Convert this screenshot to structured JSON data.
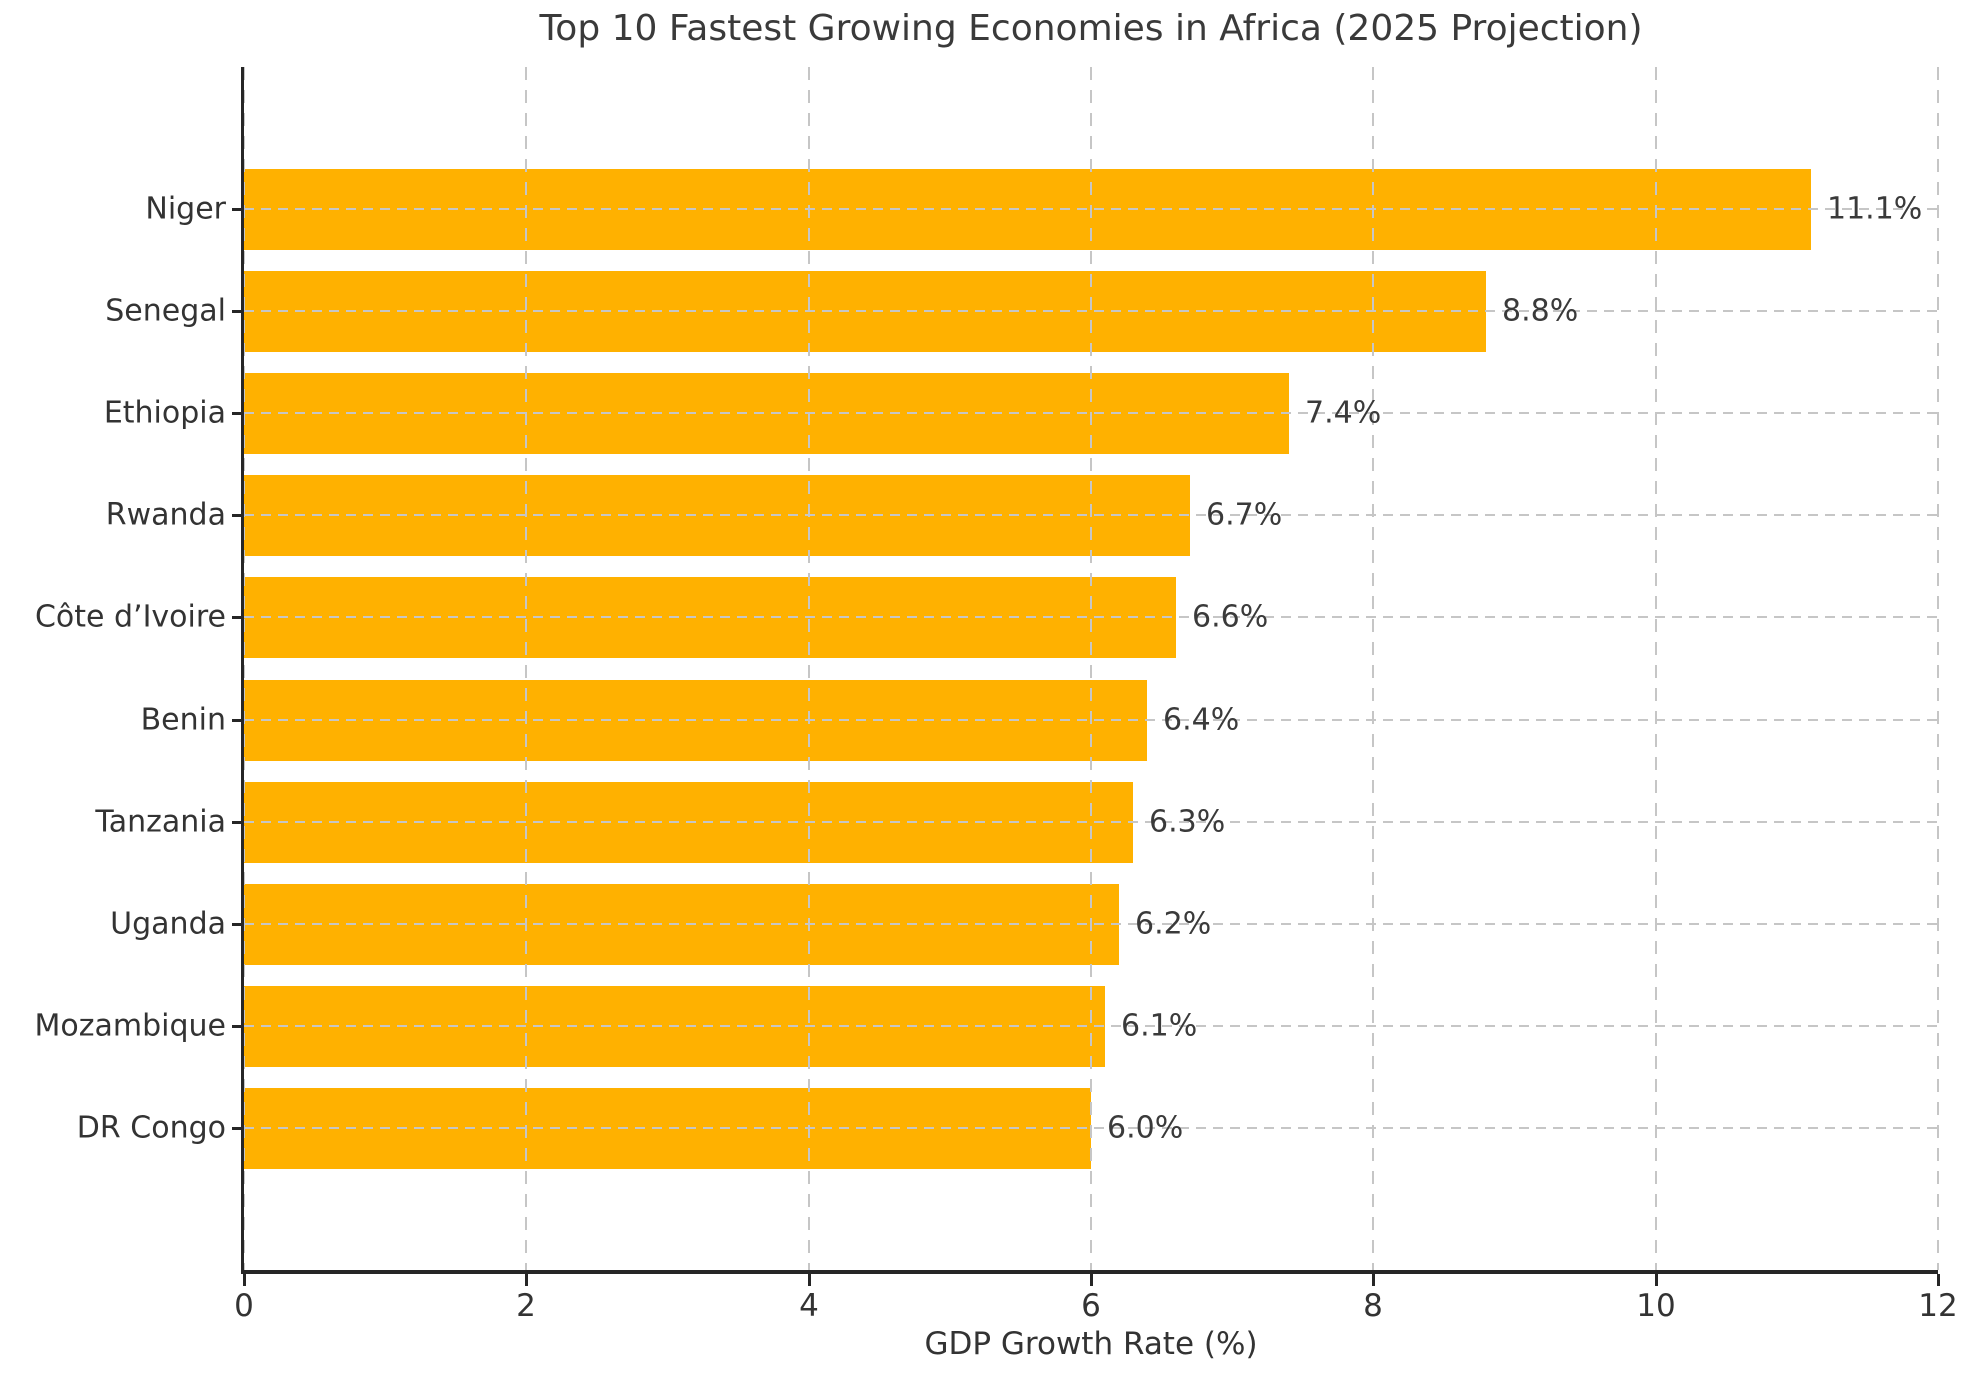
{
  "chart_data": {
    "type": "bar",
    "orientation": "horizontal",
    "title": "Top 10 Fastest Growing Economies in Africa (2025 Projection)",
    "xlabel": "GDP Growth Rate (%)",
    "ylabel": "",
    "categories": [
      "Niger",
      "Senegal",
      "Ethiopia",
      "Rwanda",
      "Côte d’Ivoire",
      "Benin",
      "Tanzania",
      "Uganda",
      "Mozambique",
      "DR Congo"
    ],
    "values": [
      11.1,
      8.8,
      7.4,
      6.7,
      6.6,
      6.4,
      6.3,
      6.2,
      6.1,
      6.0
    ],
    "value_labels": [
      "11.1%",
      "8.8%",
      "7.4%",
      "6.7%",
      "6.6%",
      "6.4%",
      "6.3%",
      "6.2%",
      "6.1%",
      "6.0%"
    ],
    "xlim": [
      0,
      12
    ],
    "xticks": [
      0,
      2,
      4,
      6,
      8,
      10,
      12
    ],
    "grid": "dashed vertical and horizontal gridlines drawn above bars",
    "legend": "none",
    "colors": {
      "bar": "#FFB100",
      "grid": "#C6C6C6",
      "axis": "#262626",
      "text": "#333333",
      "background": "#FFFFFF"
    }
  }
}
